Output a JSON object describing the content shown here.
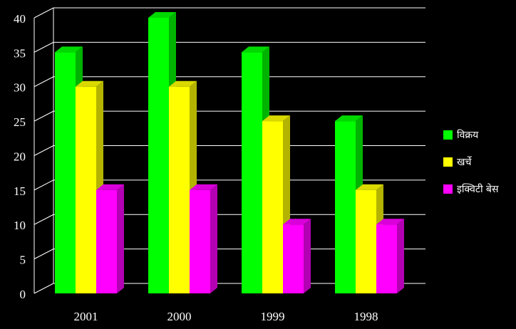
{
  "chart_data": {
    "type": "bar3d",
    "categories": [
      "2001",
      "2000",
      "1999",
      "1998"
    ],
    "series": [
      {
        "name": "विक्रय",
        "color": "#00ff00",
        "values": [
          35,
          40,
          35,
          25
        ]
      },
      {
        "name": "खर्चे",
        "color": "#ffff00",
        "values": [
          30,
          30,
          25,
          15
        ]
      },
      {
        "name": "इक्विटी बेस",
        "color": "#ff00ff",
        "values": [
          15,
          15,
          10,
          10
        ]
      }
    ],
    "ylim": [
      0,
      40
    ],
    "yticks": [
      0,
      5,
      10,
      15,
      20,
      25,
      30,
      35,
      40
    ],
    "grid": true,
    "legend": "right"
  }
}
